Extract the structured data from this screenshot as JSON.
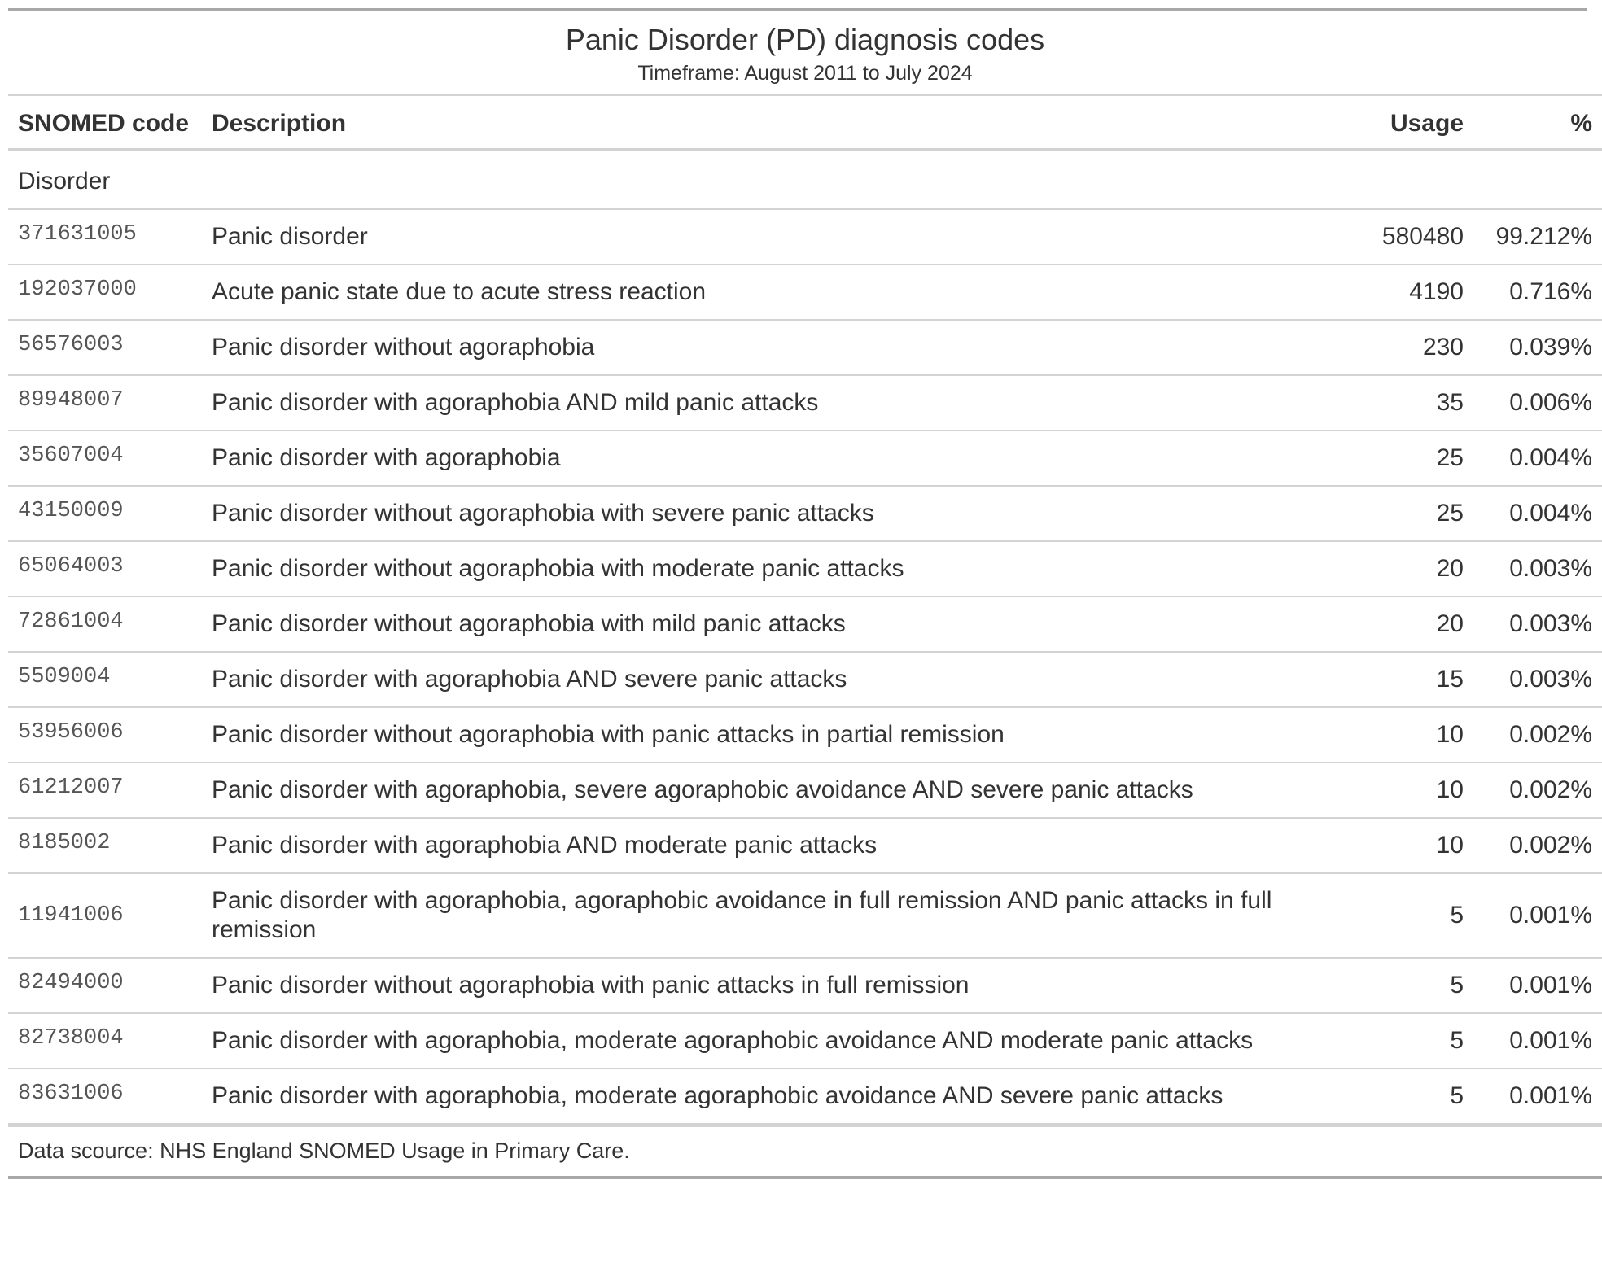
{
  "title": "Panic Disorder (PD) diagnosis codes",
  "subtitle": "Timeframe: August 2011 to July 2024",
  "columns": {
    "code": "SNOMED code",
    "description": "Description",
    "usage": "Usage",
    "percent": "%"
  },
  "group_label": "Disorder",
  "rows": [
    {
      "code": "371631005",
      "description": "Panic disorder",
      "usage": "580480",
      "percent": "99.212%"
    },
    {
      "code": "192037000",
      "description": "Acute panic state due to acute stress reaction",
      "usage": "4190",
      "percent": "0.716%"
    },
    {
      "code": "56576003",
      "description": "Panic disorder without agoraphobia",
      "usage": "230",
      "percent": "0.039%"
    },
    {
      "code": "89948007",
      "description": "Panic disorder with agoraphobia AND mild panic attacks",
      "usage": "35",
      "percent": "0.006%"
    },
    {
      "code": "35607004",
      "description": "Panic disorder with agoraphobia",
      "usage": "25",
      "percent": "0.004%"
    },
    {
      "code": "43150009",
      "description": "Panic disorder without agoraphobia with severe panic attacks",
      "usage": "25",
      "percent": "0.004%"
    },
    {
      "code": "65064003",
      "description": "Panic disorder without agoraphobia with moderate panic attacks",
      "usage": "20",
      "percent": "0.003%"
    },
    {
      "code": "72861004",
      "description": "Panic disorder without agoraphobia with mild panic attacks",
      "usage": "20",
      "percent": "0.003%"
    },
    {
      "code": "5509004",
      "description": "Panic disorder with agoraphobia AND severe panic attacks",
      "usage": "15",
      "percent": "0.003%"
    },
    {
      "code": "53956006",
      "description": "Panic disorder without agoraphobia with panic attacks in partial remission",
      "usage": "10",
      "percent": "0.002%"
    },
    {
      "code": "61212007",
      "description": "Panic disorder with agoraphobia, severe agoraphobic avoidance AND severe panic attacks",
      "usage": "10",
      "percent": "0.002%"
    },
    {
      "code": "8185002",
      "description": "Panic disorder with agoraphobia AND moderate panic attacks",
      "usage": "10",
      "percent": "0.002%"
    },
    {
      "code": "11941006",
      "description": "Panic disorder with agoraphobia, agoraphobic avoidance in full remission AND panic attacks in full remission",
      "usage": "5",
      "percent": "0.001%"
    },
    {
      "code": "82494000",
      "description": "Panic disorder without agoraphobia with panic attacks in full remission",
      "usage": "5",
      "percent": "0.001%"
    },
    {
      "code": "82738004",
      "description": "Panic disorder with agoraphobia, moderate agoraphobic avoidance AND moderate panic attacks",
      "usage": "5",
      "percent": "0.001%"
    },
    {
      "code": "83631006",
      "description": "Panic disorder with agoraphobia, moderate agoraphobic avoidance AND severe panic attacks",
      "usage": "5",
      "percent": "0.001%"
    }
  ],
  "footer": "Data scource: NHS England SNOMED Usage in Primary Care."
}
